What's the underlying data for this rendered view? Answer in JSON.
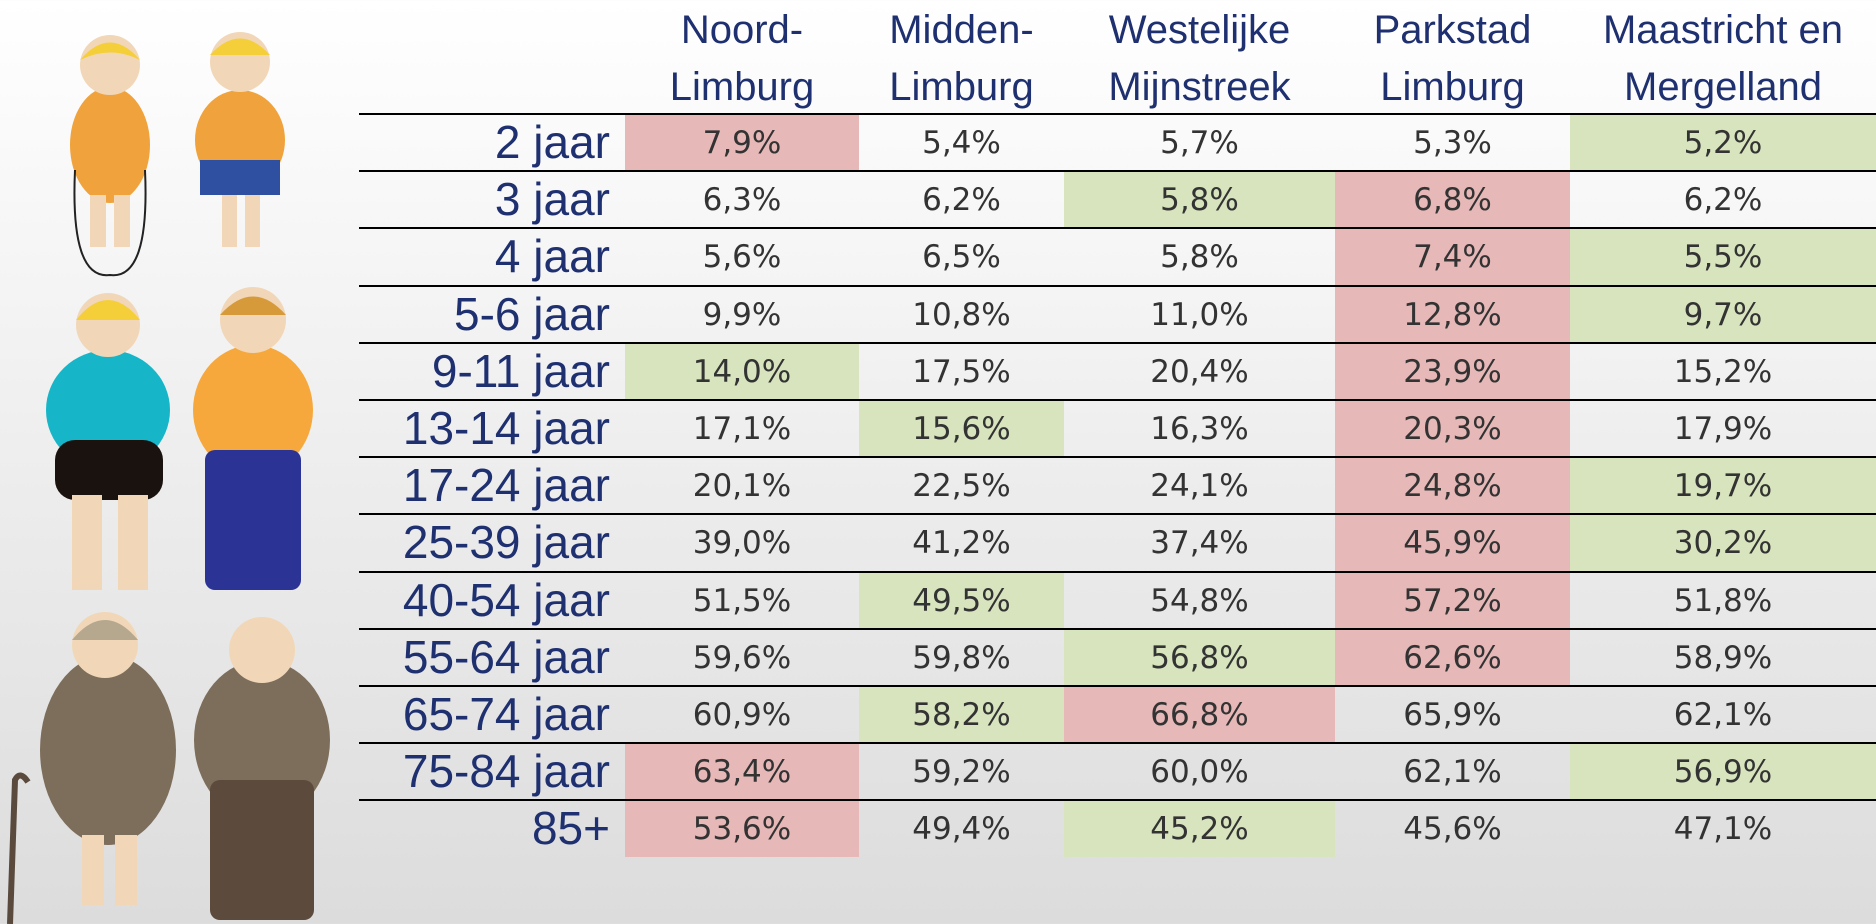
{
  "table": {
    "headers": [
      [
        "Noord-",
        "Limburg"
      ],
      [
        "Midden-",
        "Limburg"
      ],
      [
        "Westelijke",
        "Mijnstreek"
      ],
      [
        "Parkstad",
        "Limburg"
      ],
      [
        "Maastricht en",
        "Mergelland"
      ]
    ],
    "rows": [
      {
        "label": "2 jaar",
        "cells": [
          "7,9%",
          "5,4%",
          "5,7%",
          "5,3%",
          "5,2%"
        ],
        "colors": [
          "#e6b8b7",
          null,
          null,
          null,
          "#d7e4bd"
        ]
      },
      {
        "label": "3 jaar",
        "cells": [
          "6,3%",
          "6,2%",
          "5,8%",
          "6,8%",
          "6,2%"
        ],
        "colors": [
          null,
          null,
          "#d7e4bd",
          "#e6b8b7",
          null
        ]
      },
      {
        "label": "4 jaar",
        "cells": [
          "5,6%",
          "6,5%",
          "5,8%",
          "7,4%",
          "5,5%"
        ],
        "colors": [
          null,
          null,
          null,
          "#e6b8b7",
          "#d7e4bd"
        ]
      },
      {
        "label": "5-6 jaar",
        "cells": [
          "9,9%",
          "10,8%",
          "11,0%",
          "12,8%",
          "9,7%"
        ],
        "colors": [
          null,
          null,
          null,
          "#e6b8b7",
          "#d7e4bd"
        ]
      },
      {
        "label": "9-11 jaar",
        "cells": [
          "14,0%",
          "17,5%",
          "20,4%",
          "23,9%",
          "15,2%"
        ],
        "colors": [
          "#d7e4bd",
          null,
          null,
          "#e6b8b7",
          null
        ]
      },
      {
        "label": "13-14 jaar",
        "cells": [
          "17,1%",
          "15,6%",
          "16,3%",
          "20,3%",
          "17,9%"
        ],
        "colors": [
          null,
          "#d7e4bd",
          null,
          "#e6b8b7",
          null
        ]
      },
      {
        "label": "17-24 jaar",
        "cells": [
          "20,1%",
          "22,5%",
          "24,1%",
          "24,8%",
          "19,7%"
        ],
        "colors": [
          null,
          null,
          null,
          "#e6b8b7",
          "#d7e4bd"
        ]
      },
      {
        "label": "25-39 jaar",
        "cells": [
          "39,0%",
          "41,2%",
          "37,4%",
          "45,9%",
          "30,2%"
        ],
        "colors": [
          null,
          null,
          null,
          "#e6b8b7",
          "#d7e4bd"
        ]
      },
      {
        "label": "40-54 jaar",
        "cells": [
          "51,5%",
          "49,5%",
          "54,8%",
          "57,2%",
          "51,8%"
        ],
        "colors": [
          null,
          "#d7e4bd",
          null,
          "#e6b8b7",
          null
        ]
      },
      {
        "label": "55-64 jaar",
        "cells": [
          "59,6%",
          "59,8%",
          "56,8%",
          "62,6%",
          "58,9%"
        ],
        "colors": [
          null,
          null,
          "#d7e4bd",
          "#e6b8b7",
          null
        ]
      },
      {
        "label": "65-74 jaar",
        "cells": [
          "60,9%",
          "58,2%",
          "66,8%",
          "65,9%",
          "62,1%"
        ],
        "colors": [
          null,
          "#d7e4bd",
          "#e6b8b7",
          null,
          null
        ]
      },
      {
        "label": "75-84 jaar",
        "cells": [
          "63,4%",
          "59,2%",
          "60,0%",
          "62,1%",
          "56,9%"
        ],
        "colors": [
          "#e6b8b7",
          null,
          null,
          null,
          "#d7e4bd"
        ]
      },
      {
        "label": "85+",
        "cells": [
          "53,6%",
          "49,4%",
          "45,2%",
          "45,6%",
          "47,1%"
        ],
        "colors": [
          "#e6b8b7",
          null,
          "#d7e4bd",
          null,
          null
        ]
      }
    ]
  }
}
